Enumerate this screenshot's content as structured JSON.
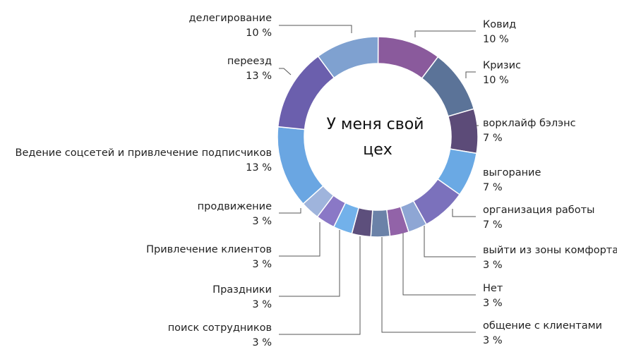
{
  "chart_data": {
    "type": "pie",
    "donut": true,
    "title": "У меня свой цех",
    "title_lines": [
      "У меня свой",
      "цех"
    ],
    "slices": [
      {
        "label": "Ковид",
        "value": 10,
        "value_text": "10 %",
        "color": "#8a5a9c"
      },
      {
        "label": "Кризис",
        "value": 10,
        "value_text": "10 %",
        "color": "#5b7398"
      },
      {
        "label": "ворклайф бэлэнс",
        "value": 7,
        "value_text": "7 %",
        "color": "#5c4b78"
      },
      {
        "label": "выгорание",
        "value": 7,
        "value_text": "7 %",
        "color": "#6aa9e4"
      },
      {
        "label": "организация работы",
        "value": 7,
        "value_text": "7 %",
        "color": "#7b71bc"
      },
      {
        "label": "выйти из зоны комфорта",
        "value": 3,
        "value_text": "3 %",
        "color": "#8ea6d4"
      },
      {
        "label": "Нет",
        "value": 3,
        "value_text": "3 %",
        "color": "#9263a8"
      },
      {
        "label": "общение с клиентами",
        "value": 3,
        "value_text": "3 %",
        "color": "#6b82a8"
      },
      {
        "label": "поиск сотрудников",
        "value": 3,
        "value_text": "3 %",
        "color": "#5d4f7c"
      },
      {
        "label": "Праздники",
        "value": 3,
        "value_text": "3 %",
        "color": "#72b1ea"
      },
      {
        "label": "Привлечение клиентов",
        "value": 3,
        "value_text": "3 %",
        "color": "#8a78c6"
      },
      {
        "label": "продвижение",
        "value": 3,
        "value_text": "3 %",
        "color": "#9fb4dc"
      },
      {
        "label": "Ведение соцсетей и привлечение подписчиков",
        "value": 13,
        "value_text": "13 %",
        "color": "#6aa6e2"
      },
      {
        "label": "переезд",
        "value": 13,
        "value_text": "13 %",
        "color": "#6b5fad"
      },
      {
        "label": "делегирование",
        "value": 10,
        "value_text": "10 %",
        "color": "#7fa1d0"
      }
    ]
  }
}
